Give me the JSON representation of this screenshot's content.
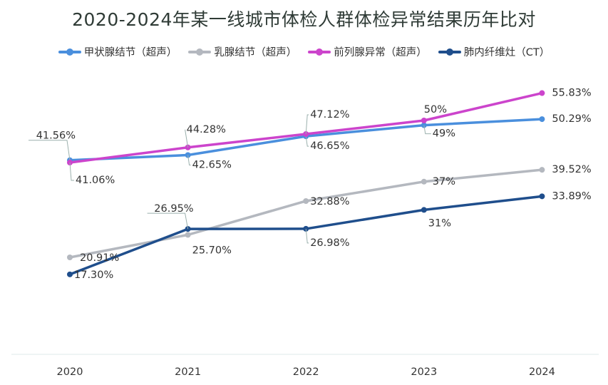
{
  "chart_data": {
    "type": "line",
    "title": "2020-2024年某一线城市体检人群体检异常结果历年比对",
    "categories": [
      "2020",
      "2021",
      "2022",
      "2023",
      "2024"
    ],
    "ylim": [
      0,
      60
    ],
    "grid": false,
    "legend_position": "top",
    "series": [
      {
        "name": "甲状腺结节（超声）",
        "color": "#4a8fdd",
        "values": [
          41.56,
          42.65,
          46.65,
          49,
          50.29
        ],
        "labels": [
          "41.56%",
          "42.65%",
          "46.65%",
          "49%",
          "50.29%"
        ]
      },
      {
        "name": "乳腺结节（超声）",
        "color": "#b4b8bf",
        "values": [
          20.91,
          25.7,
          32.88,
          37,
          39.52
        ],
        "labels": [
          "20.91%",
          "25.70%",
          "32.88%",
          "37%",
          "39.52%"
        ]
      },
      {
        "name": "前列腺异常（超声）",
        "color": "#cc44cc",
        "values": [
          41.06,
          44.28,
          47.12,
          50,
          55.83
        ],
        "labels": [
          "41.06%",
          "44.28%",
          "47.12%",
          "50%",
          "55.83%"
        ]
      },
      {
        "name": "肺内纤维灶（CT）",
        "color": "#1f4e8c",
        "values": [
          17.3,
          26.95,
          26.98,
          31,
          33.89
        ],
        "labels": [
          "17.30%",
          "26.95%",
          "26.98%",
          "31%",
          "33.89%"
        ]
      }
    ]
  }
}
